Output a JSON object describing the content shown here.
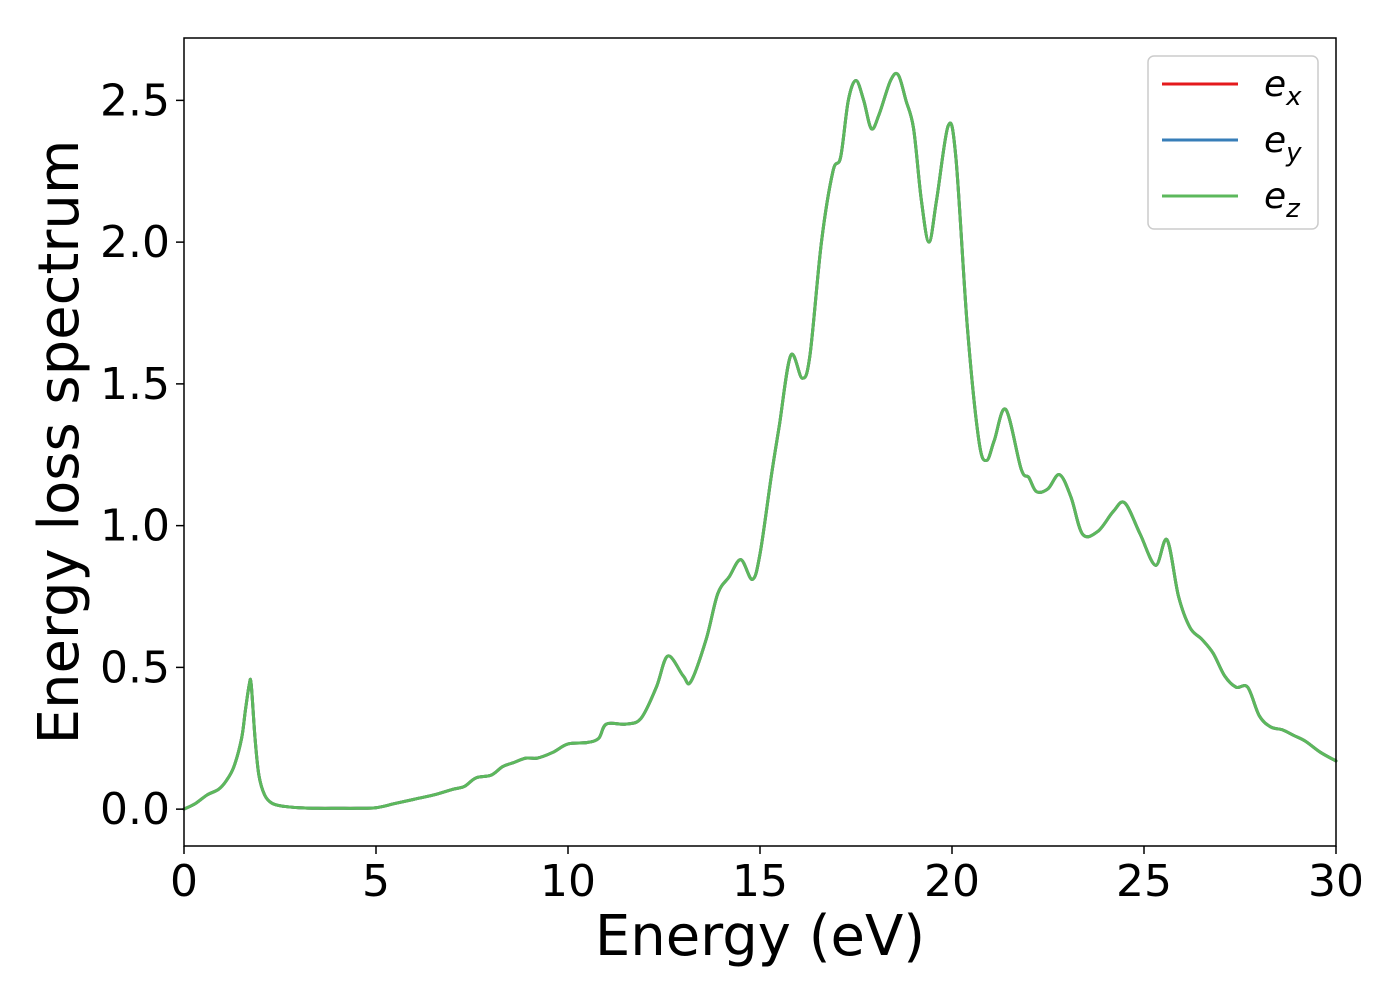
{
  "chart_data": {
    "type": "line",
    "title": "",
    "xlabel": "Energy (eV)",
    "ylabel": "Energy loss spectrum",
    "xlim": [
      0,
      30
    ],
    "ylim": [
      -0.13,
      2.72
    ],
    "xticks": [
      "0",
      "5",
      "10",
      "15",
      "20",
      "25",
      "30"
    ],
    "yticks": [
      "0.0",
      "0.5",
      "1.0",
      "1.5",
      "2.0",
      "2.5"
    ],
    "grid": false,
    "legend_position": "top-right",
    "x": [
      0,
      0.3,
      0.6,
      0.9,
      1.1,
      1.3,
      1.5,
      1.6,
      1.7,
      1.75,
      1.85,
      1.95,
      2.1,
      2.3,
      2.6,
      3,
      3.5,
      4,
      4.5,
      5,
      5.5,
      6,
      6.5,
      7,
      7.3,
      7.6,
      8,
      8.3,
      8.6,
      8.9,
      9.2,
      9.6,
      10,
      10.5,
      10.8,
      11,
      11.5,
      11.9,
      12.3,
      12.6,
      13,
      13.2,
      13.6,
      13.9,
      14.2,
      14.5,
      14.8,
      15,
      15.3,
      15.5,
      15.8,
      16.1,
      16.3,
      16.6,
      16.9,
      17.1,
      17.3,
      17.5,
      17.7,
      17.9,
      18.1,
      18.4,
      18.6,
      18.8,
      19,
      19.2,
      19.4,
      19.6,
      19.9,
      20.1,
      20.4,
      20.7,
      20.9,
      21.1,
      21.4,
      21.8,
      22,
      22.2,
      22.5,
      22.8,
      23.1,
      23.4,
      23.8,
      24.2,
      24.5,
      24.9,
      25.3,
      25.6,
      25.9,
      26.2,
      26.5,
      26.8,
      27.1,
      27.4,
      27.7,
      28,
      28.3,
      28.6,
      28.9,
      29.2,
      29.6,
      30
    ],
    "series": [
      {
        "name": "e",
        "subscript": "x",
        "color": "#e41a1c",
        "y": [
          0,
          0.02,
          0.05,
          0.07,
          0.1,
          0.15,
          0.25,
          0.35,
          0.44,
          0.44,
          0.25,
          0.12,
          0.05,
          0.02,
          0.01,
          0.005,
          0.003,
          0.003,
          0.003,
          0.005,
          0.02,
          0.035,
          0.05,
          0.07,
          0.08,
          0.11,
          0.12,
          0.15,
          0.165,
          0.18,
          0.18,
          0.2,
          0.23,
          0.235,
          0.25,
          0.3,
          0.3,
          0.32,
          0.43,
          0.54,
          0.47,
          0.45,
          0.6,
          0.76,
          0.82,
          0.88,
          0.81,
          0.9,
          1.18,
          1.35,
          1.6,
          1.52,
          1.6,
          2.0,
          2.25,
          2.3,
          2.5,
          2.57,
          2.5,
          2.4,
          2.45,
          2.57,
          2.59,
          2.5,
          2.4,
          2.15,
          2.0,
          2.15,
          2.41,
          2.3,
          1.7,
          1.3,
          1.23,
          1.3,
          1.41,
          1.2,
          1.17,
          1.12,
          1.13,
          1.18,
          1.1,
          0.97,
          0.98,
          1.05,
          1.08,
          0.97,
          0.86,
          0.95,
          0.75,
          0.64,
          0.6,
          0.55,
          0.47,
          0.43,
          0.43,
          0.33,
          0.29,
          0.28,
          0.26,
          0.24,
          0.2,
          0.17
        ]
      },
      {
        "name": "e",
        "subscript": "y",
        "color": "#377eb8",
        "y": [
          0,
          0.02,
          0.05,
          0.07,
          0.1,
          0.15,
          0.25,
          0.35,
          0.44,
          0.44,
          0.25,
          0.12,
          0.05,
          0.02,
          0.01,
          0.005,
          0.003,
          0.003,
          0.003,
          0.005,
          0.02,
          0.035,
          0.05,
          0.07,
          0.08,
          0.11,
          0.12,
          0.15,
          0.165,
          0.18,
          0.18,
          0.2,
          0.23,
          0.235,
          0.25,
          0.3,
          0.3,
          0.32,
          0.43,
          0.54,
          0.47,
          0.45,
          0.6,
          0.76,
          0.82,
          0.88,
          0.81,
          0.9,
          1.18,
          1.35,
          1.6,
          1.52,
          1.6,
          2.0,
          2.25,
          2.3,
          2.5,
          2.57,
          2.5,
          2.4,
          2.45,
          2.57,
          2.59,
          2.5,
          2.4,
          2.15,
          2.0,
          2.15,
          2.41,
          2.3,
          1.7,
          1.3,
          1.23,
          1.3,
          1.41,
          1.2,
          1.17,
          1.12,
          1.13,
          1.18,
          1.1,
          0.97,
          0.98,
          1.05,
          1.08,
          0.97,
          0.86,
          0.95,
          0.75,
          0.64,
          0.6,
          0.55,
          0.47,
          0.43,
          0.43,
          0.33,
          0.29,
          0.28,
          0.26,
          0.24,
          0.2,
          0.17
        ]
      },
      {
        "name": "e",
        "subscript": "z",
        "color": "#5cb85c",
        "y": [
          0,
          0.02,
          0.05,
          0.07,
          0.1,
          0.15,
          0.25,
          0.35,
          0.44,
          0.44,
          0.25,
          0.12,
          0.05,
          0.02,
          0.01,
          0.005,
          0.003,
          0.003,
          0.003,
          0.005,
          0.02,
          0.035,
          0.05,
          0.07,
          0.08,
          0.11,
          0.12,
          0.15,
          0.165,
          0.18,
          0.18,
          0.2,
          0.23,
          0.235,
          0.25,
          0.3,
          0.3,
          0.32,
          0.43,
          0.54,
          0.47,
          0.45,
          0.6,
          0.76,
          0.82,
          0.88,
          0.81,
          0.9,
          1.18,
          1.35,
          1.6,
          1.52,
          1.6,
          2.0,
          2.25,
          2.3,
          2.5,
          2.57,
          2.5,
          2.4,
          2.45,
          2.57,
          2.59,
          2.5,
          2.4,
          2.15,
          2.0,
          2.15,
          2.41,
          2.3,
          1.7,
          1.3,
          1.23,
          1.3,
          1.41,
          1.2,
          1.17,
          1.12,
          1.13,
          1.18,
          1.1,
          0.97,
          0.98,
          1.05,
          1.08,
          0.97,
          0.86,
          0.95,
          0.75,
          0.64,
          0.6,
          0.55,
          0.47,
          0.43,
          0.43,
          0.33,
          0.29,
          0.28,
          0.26,
          0.24,
          0.2,
          0.17
        ]
      }
    ]
  }
}
